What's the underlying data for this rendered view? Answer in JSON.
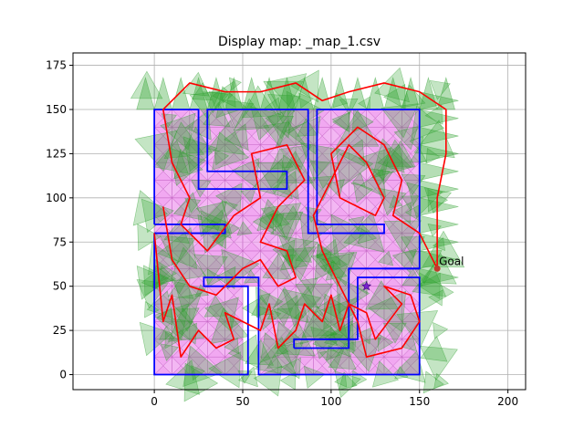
{
  "chart_data": {
    "type": "map",
    "title": "Display map: _map_1.csv",
    "xlim": [
      -46,
      210
    ],
    "ylim": [
      -8.5,
      182
    ],
    "x_ticks": [
      0,
      50,
      100,
      150,
      200
    ],
    "y_ticks": [
      0,
      25,
      50,
      75,
      100,
      125,
      150,
      175
    ],
    "grid": true,
    "colors": {
      "walls": "#0000ff",
      "cells": "#ee99ee",
      "visibility": "#2ca02c",
      "path": "#ff0000",
      "start": "#7b1fd0",
      "goal": "#c0392b"
    },
    "walls": [
      [
        [
          0,
          85
        ],
        [
          0,
          150
        ],
        [
          25,
          150
        ],
        [
          25,
          105
        ],
        [
          75,
          105
        ],
        [
          75,
          115
        ],
        [
          30,
          115
        ],
        [
          30,
          150
        ],
        [
          87,
          150
        ],
        [
          87,
          80
        ],
        [
          130,
          80
        ],
        [
          130,
          85
        ],
        [
          92,
          85
        ],
        [
          92,
          150
        ],
        [
          150,
          150
        ],
        [
          150,
          60
        ],
        [
          130,
          60
        ],
        [
          130,
          60
        ]
      ],
      [
        [
          0,
          80
        ],
        [
          40,
          80
        ],
        [
          40,
          85
        ],
        [
          0,
          85
        ]
      ],
      [
        [
          0,
          80
        ],
        [
          0,
          0
        ],
        [
          53,
          0
        ],
        [
          53,
          50
        ],
        [
          28,
          50
        ],
        [
          28,
          55
        ],
        [
          59,
          55
        ],
        [
          59,
          0
        ],
        [
          150,
          0
        ],
        [
          150,
          55
        ],
        [
          115,
          55
        ],
        [
          115,
          20
        ],
        [
          110,
          20
        ],
        [
          110,
          60
        ],
        [
          150,
          60
        ]
      ],
      [
        [
          79,
          15
        ],
        [
          110,
          15
        ],
        [
          110,
          20
        ],
        [
          79,
          20
        ],
        [
          79,
          15
        ]
      ]
    ],
    "path": [
      [
        0,
        80
      ],
      [
        5,
        30
      ],
      [
        10,
        45
      ],
      [
        15,
        10
      ],
      [
        25,
        25
      ],
      [
        35,
        15
      ],
      [
        45,
        20
      ],
      [
        40,
        35
      ],
      [
        60,
        25
      ],
      [
        65,
        40
      ],
      [
        70,
        15
      ],
      [
        80,
        25
      ],
      [
        85,
        40
      ],
      [
        95,
        30
      ],
      [
        100,
        45
      ],
      [
        105,
        25
      ],
      [
        110,
        40
      ],
      [
        120,
        35
      ],
      [
        125,
        20
      ],
      [
        140,
        40
      ],
      [
        130,
        50
      ],
      [
        145,
        45
      ],
      [
        150,
        30
      ],
      [
        140,
        15
      ],
      [
        120,
        10
      ],
      [
        115,
        30
      ],
      [
        105,
        50
      ],
      [
        95,
        70
      ],
      [
        90,
        90
      ],
      [
        100,
        110
      ],
      [
        110,
        130
      ],
      [
        120,
        120
      ],
      [
        130,
        100
      ],
      [
        125,
        90
      ],
      [
        105,
        100
      ],
      [
        100,
        125
      ],
      [
        115,
        140
      ],
      [
        130,
        130
      ],
      [
        140,
        110
      ],
      [
        135,
        90
      ],
      [
        150,
        80
      ],
      [
        160,
        60
      ],
      [
        160,
        100
      ],
      [
        165,
        125
      ],
      [
        165,
        150
      ],
      [
        150,
        160
      ],
      [
        130,
        165
      ],
      [
        110,
        160
      ],
      [
        95,
        155
      ],
      [
        80,
        165
      ],
      [
        60,
        160
      ],
      [
        40,
        160
      ],
      [
        20,
        165
      ],
      [
        5,
        150
      ],
      [
        10,
        120
      ],
      [
        20,
        100
      ],
      [
        15,
        85
      ],
      [
        30,
        70
      ],
      [
        45,
        90
      ],
      [
        60,
        100
      ],
      [
        55,
        125
      ],
      [
        75,
        130
      ],
      [
        85,
        110
      ],
      [
        70,
        95
      ],
      [
        60,
        75
      ],
      [
        75,
        70
      ],
      [
        80,
        55
      ],
      [
        70,
        50
      ],
      [
        60,
        65
      ],
      [
        50,
        60
      ],
      [
        35,
        45
      ],
      [
        20,
        50
      ],
      [
        10,
        65
      ],
      [
        5,
        95
      ]
    ],
    "start": {
      "x": 120,
      "y": 50
    },
    "goal": {
      "x": 160,
      "y": 60,
      "label": "Goal"
    }
  }
}
